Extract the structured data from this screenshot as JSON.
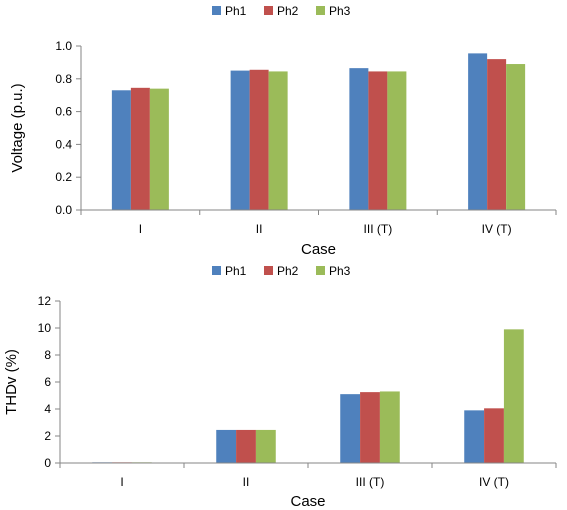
{
  "chart_data": [
    {
      "type": "bar",
      "categories": [
        "I",
        "II",
        "III (T)",
        "IV (T)"
      ],
      "series": [
        {
          "name": "Ph1",
          "color": "#4F81BD",
          "values": [
            0.73,
            0.85,
            0.865,
            0.955
          ]
        },
        {
          "name": "Ph2",
          "color": "#C0504D",
          "values": [
            0.745,
            0.855,
            0.845,
            0.92
          ]
        },
        {
          "name": "Ph3",
          "color": "#9BBB59",
          "values": [
            0.74,
            0.845,
            0.845,
            0.89
          ]
        }
      ],
      "xlabel": "Case",
      "ylabel": "Voltage (p.u.)",
      "ylim": [
        0,
        1.0
      ],
      "yticks": [
        "0.0",
        "0.2",
        "0.4",
        "0.6",
        "0.8",
        "1.0"
      ],
      "ytick_values": [
        0,
        0.2,
        0.4,
        0.6,
        0.8,
        1.0
      ],
      "legend_position": "top-center",
      "grid": false
    },
    {
      "type": "bar",
      "categories": [
        "I",
        "II",
        "III (T)",
        "IV (T)"
      ],
      "series": [
        {
          "name": "Ph1",
          "color": "#4F81BD",
          "values": [
            0.05,
            2.45,
            5.1,
            3.9
          ]
        },
        {
          "name": "Ph2",
          "color": "#C0504D",
          "values": [
            0.05,
            2.45,
            5.25,
            4.05
          ]
        },
        {
          "name": "Ph3",
          "color": "#9BBB59",
          "values": [
            0.05,
            2.45,
            5.3,
            9.9
          ]
        }
      ],
      "xlabel": "Case",
      "ylabel": "THDv (%)",
      "ylim": [
        0,
        12
      ],
      "yticks": [
        "0",
        "2",
        "4",
        "6",
        "8",
        "10",
        "12"
      ],
      "ytick_values": [
        0,
        2,
        4,
        6,
        8,
        10,
        12
      ],
      "legend_position": "top-center",
      "grid": false
    }
  ]
}
